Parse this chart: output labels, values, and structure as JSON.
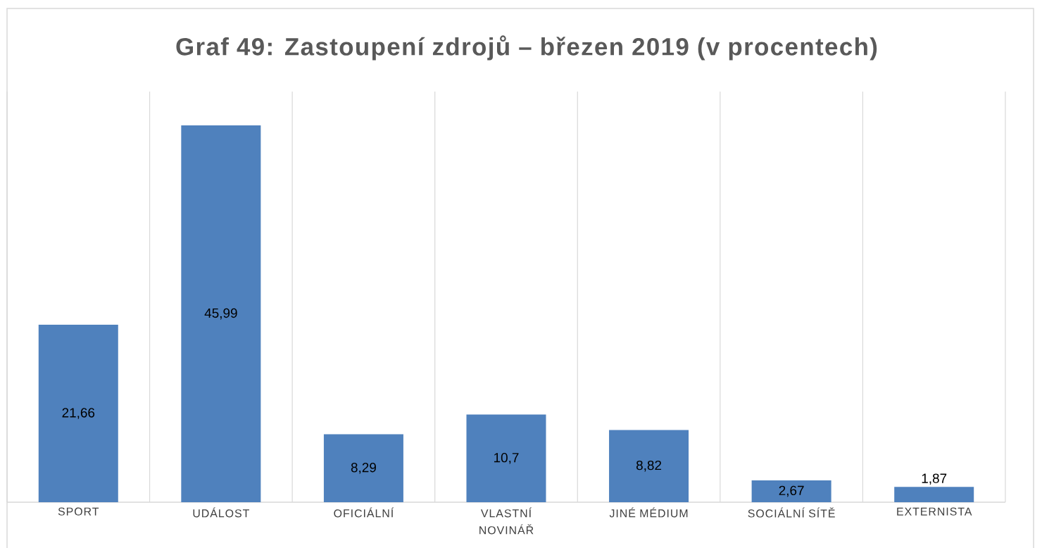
{
  "chart_data": {
    "type": "bar",
    "title": "Graf 49: Zastoupení zdrojů – březen 2019 (v procentech)",
    "categories": [
      "SPORT",
      "UDÁLOST",
      "OFICIÁLNÍ",
      "VLASTNÍ NOVINÁŘ",
      "JINÉ MÉDIUM",
      "SOCIÁLNÍ SÍTĚ",
      "EXTERNISTA"
    ],
    "values": [
      21.66,
      45.99,
      8.29,
      10.7,
      8.82,
      2.67,
      1.87
    ],
    "value_labels": [
      "21,66",
      "45,99",
      "8,29",
      "10,7",
      "8,82",
      "2,67",
      "1,87"
    ],
    "color": "#4f81bd",
    "grid": "x"
  }
}
